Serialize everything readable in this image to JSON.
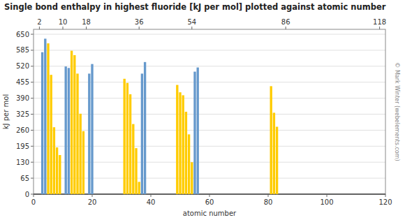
{
  "chart_data": {
    "type": "bar",
    "title": "Single bond enthalpy in highest fluoride [kJ per mol] plotted against atomic number",
    "xlabel": "atomic number",
    "ylabel": "kJ per mol",
    "annotation": "© Mark Winter (webelements.com)",
    "x": [
      1,
      2,
      3,
      4,
      5,
      6,
      7,
      8,
      9,
      10,
      11,
      12,
      13,
      14,
      15,
      16,
      17,
      18,
      19,
      20,
      21,
      22,
      23,
      24,
      25,
      26,
      27,
      28,
      29,
      30,
      31,
      32,
      33,
      34,
      35,
      36,
      37,
      38,
      39,
      40,
      41,
      42,
      43,
      44,
      45,
      46,
      47,
      48,
      49,
      50,
      51,
      52,
      53,
      54,
      55,
      56,
      57,
      58,
      59,
      60,
      61,
      62,
      63,
      64,
      65,
      66,
      67,
      68,
      69,
      70,
      71,
      72,
      73,
      74,
      75,
      76,
      77,
      78,
      79,
      80,
      81,
      82,
      83,
      84,
      85,
      86
    ],
    "values": [
      0,
      0,
      577,
      632,
      613,
      485,
      272,
      190,
      159,
      0,
      519,
      513,
      583,
      565,
      490,
      327,
      256,
      0,
      490,
      529,
      0,
      0,
      0,
      0,
      0,
      0,
      0,
      0,
      0,
      0,
      469,
      452,
      406,
      285,
      187,
      50,
      490,
      537,
      0,
      0,
      0,
      0,
      0,
      0,
      0,
      0,
      0,
      0,
      444,
      414,
      402,
      335,
      243,
      130,
      498,
      515,
      0,
      0,
      0,
      0,
      0,
      0,
      0,
      0,
      0,
      0,
      0,
      0,
      0,
      0,
      0,
      0,
      0,
      0,
      0,
      0,
      0,
      0,
      0,
      0,
      439,
      331,
      274,
      0,
      0,
      0
    ],
    "colors": [
      "#6699cc",
      "#ffcc00",
      "#6699cc",
      "#6699cc",
      "#ffcc00",
      "#ffcc00",
      "#ffcc00",
      "#ffcc00",
      "#ffcc00",
      "#ffcc00",
      "#6699cc",
      "#6699cc",
      "#ffcc00",
      "#ffcc00",
      "#ffcc00",
      "#ffcc00",
      "#ffcc00",
      "#ffcc00",
      "#6699cc",
      "#6699cc",
      "#ffcc00",
      "#ffcc00",
      "#ffcc00",
      "#ffcc00",
      "#ffcc00",
      "#ffcc00",
      "#ffcc00",
      "#ffcc00",
      "#ffcc00",
      "#ffcc00",
      "#ffcc00",
      "#ffcc00",
      "#ffcc00",
      "#ffcc00",
      "#ffcc00",
      "#ffcc00",
      "#6699cc",
      "#6699cc",
      "#ffcc00",
      "#ffcc00",
      "#ffcc00",
      "#ffcc00",
      "#ffcc00",
      "#ffcc00",
      "#ffcc00",
      "#ffcc00",
      "#ffcc00",
      "#ffcc00",
      "#ffcc00",
      "#ffcc00",
      "#ffcc00",
      "#ffcc00",
      "#ffcc00",
      "#ffcc00",
      "#6699cc",
      "#6699cc",
      "#ffcc00",
      "#ffcc00",
      "#ffcc00",
      "#ffcc00",
      "#ffcc00",
      "#ffcc00",
      "#ffcc00",
      "#ffcc00",
      "#ffcc00",
      "#ffcc00",
      "#ffcc00",
      "#ffcc00",
      "#ffcc00",
      "#ffcc00",
      "#ffcc00",
      "#ffcc00",
      "#ffcc00",
      "#ffcc00",
      "#ffcc00",
      "#ffcc00",
      "#ffcc00",
      "#ffcc00",
      "#ffcc00",
      "#ffcc00",
      "#ffcc00",
      "#ffcc00",
      "#ffcc00",
      "#ffcc00",
      "#ffcc00",
      "#ffcc00"
    ],
    "xlim": [
      0,
      120
    ],
    "xticks": [
      0,
      20,
      40,
      60,
      80,
      100,
      120
    ],
    "x2lim": [
      0,
      120
    ],
    "x2ticks": [
      2,
      10,
      18,
      36,
      54,
      86,
      118
    ],
    "ylim": [
      0,
      670
    ],
    "yticks": [
      0,
      65,
      130,
      195,
      260,
      325,
      390,
      455,
      520,
      585,
      650
    ],
    "grid": true
  }
}
